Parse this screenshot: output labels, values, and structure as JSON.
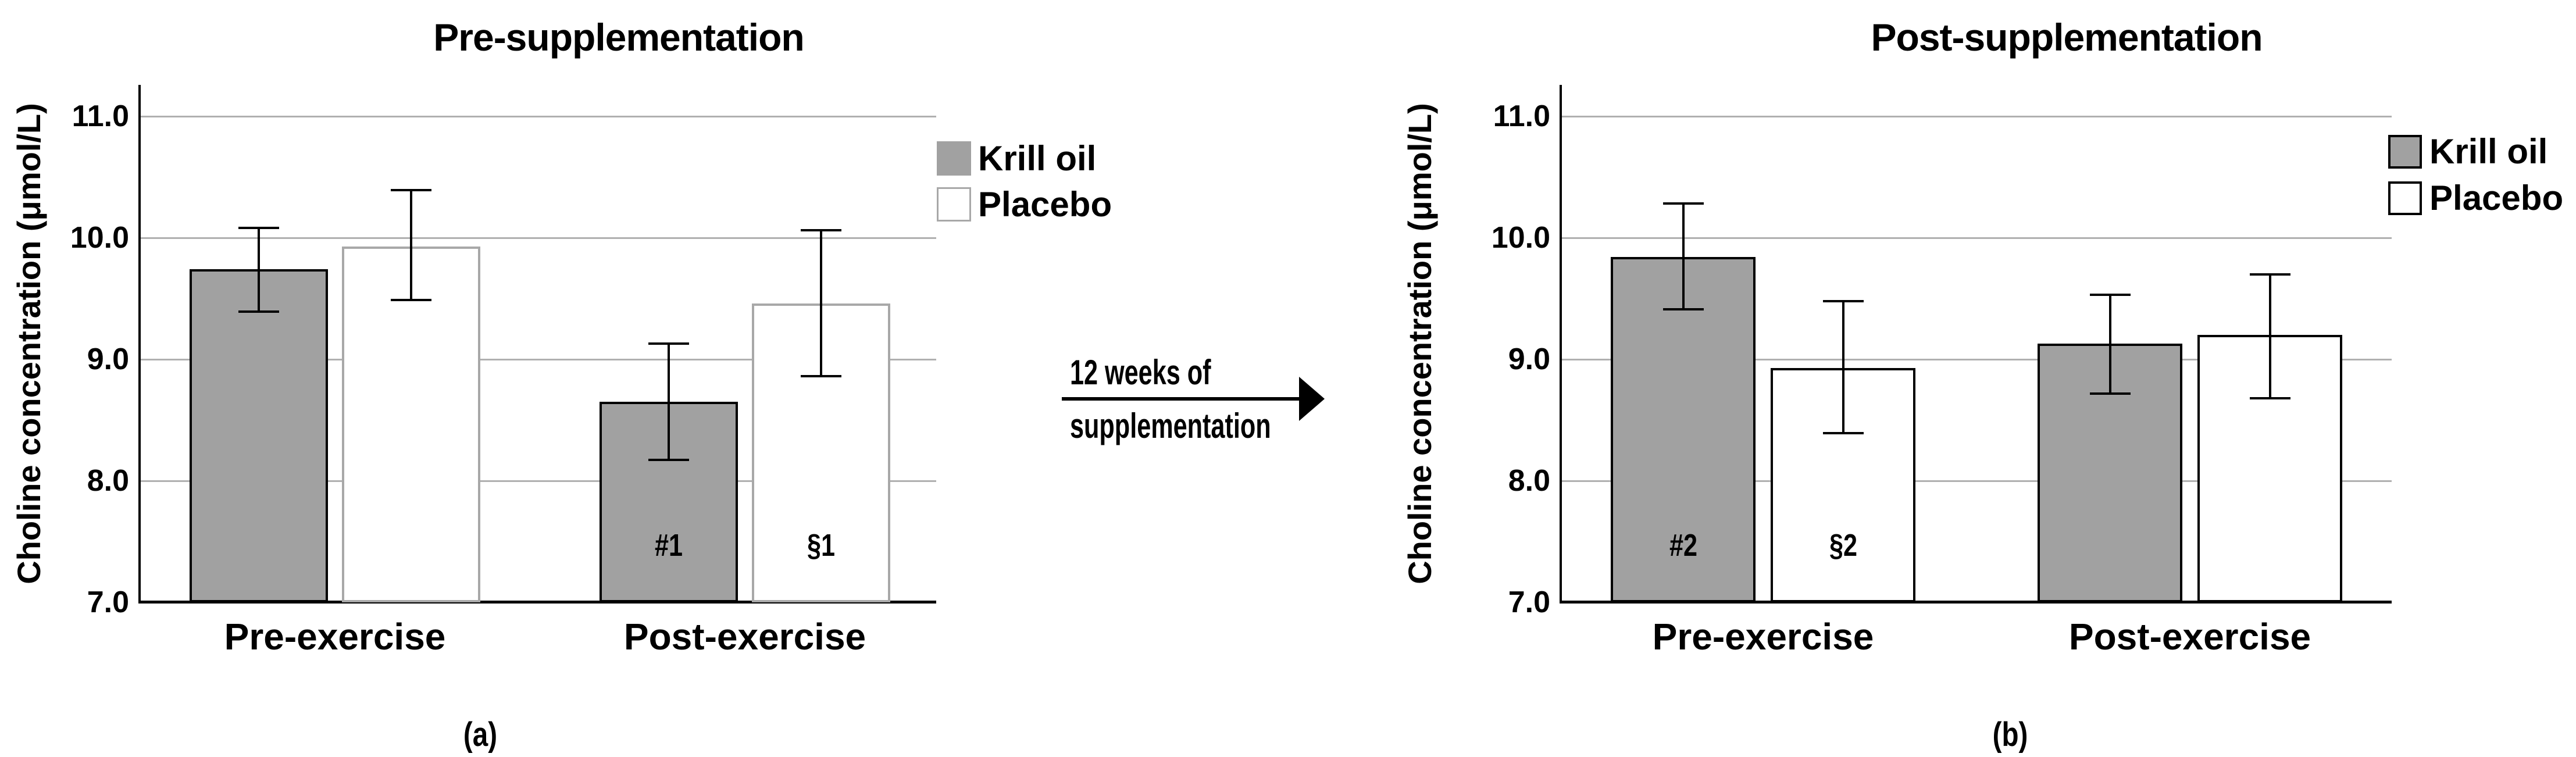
{
  "figure_background": "#ffffff",
  "colors": {
    "krill_fill": "#a1a1a1",
    "placebo_fill": "#ffffff",
    "black": "#000000",
    "placebo_border_panel_a": "#a8a8a8",
    "gridline": "#b0b0b0"
  },
  "arrow": {
    "line1": "12 weeks of",
    "line2": "supplementation"
  },
  "chart_data": [
    {
      "type": "bar",
      "title": "Pre-supplementation",
      "panel_label": "(a)",
      "ylabel": "Choline concentration (μmol/L)",
      "xlabel": "",
      "ylim": [
        7.0,
        11.0
      ],
      "ytick_values": [
        11.0,
        10.0,
        9.0,
        8.0,
        7.0
      ],
      "ytick_labels": [
        "11.0",
        "10.0",
        "9.0",
        "8.0",
        "7.0"
      ],
      "categories": [
        "Pre-exercise",
        "Post-exercise"
      ],
      "grid": true,
      "legend_position": "top-right",
      "series": [
        {
          "name": "Krill oil",
          "values": [
            9.74,
            8.65
          ],
          "error_low": [
            9.39,
            8.17
          ],
          "error_high": [
            10.08,
            9.13
          ],
          "annotations": [
            "",
            "#1"
          ]
        },
        {
          "name": "Placebo",
          "values": [
            9.93,
            9.46
          ],
          "error_low": [
            9.49,
            8.86
          ],
          "error_high": [
            10.39,
            10.06
          ],
          "annotations": [
            "",
            "§1"
          ]
        }
      ]
    },
    {
      "type": "bar",
      "title": "Post-supplementation",
      "panel_label": "(b)",
      "ylabel": "Choline concentration (μmol/L)",
      "xlabel": "",
      "ylim": [
        7.0,
        11.0
      ],
      "ytick_values": [
        11.0,
        10.0,
        9.0,
        8.0,
        7.0
      ],
      "ytick_labels": [
        "11.0",
        "10.0",
        "9.0",
        "8.0",
        "7.0"
      ],
      "categories": [
        "Pre-exercise",
        "Post-exercise"
      ],
      "grid": true,
      "legend_position": "top-right",
      "series": [
        {
          "name": "Krill oil",
          "values": [
            9.84,
            9.13
          ],
          "error_low": [
            9.41,
            8.72
          ],
          "error_high": [
            10.28,
            9.53
          ],
          "annotations": [
            "#2",
            ""
          ]
        },
        {
          "name": "Placebo",
          "values": [
            8.93,
            9.2
          ],
          "error_low": [
            8.39,
            8.68
          ],
          "error_high": [
            9.48,
            9.7
          ],
          "annotations": [
            "§2",
            ""
          ]
        }
      ]
    }
  ]
}
